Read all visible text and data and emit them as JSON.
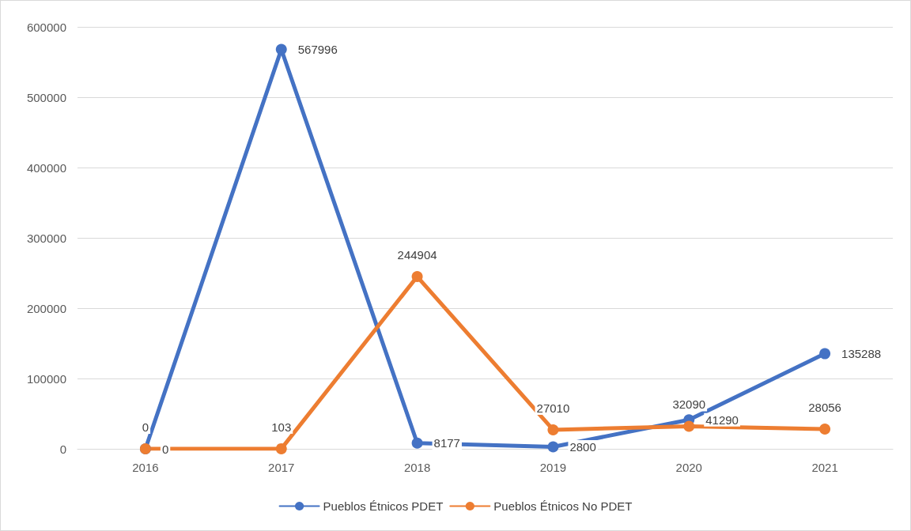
{
  "chart_data": {
    "type": "line",
    "categories": [
      "2016",
      "2017",
      "2018",
      "2019",
      "2020",
      "2021"
    ],
    "series": [
      {
        "name": "Pueblos Étnicos PDET",
        "color": "#4472c4",
        "values": [
          0,
          567996,
          8177,
          2800,
          41290,
          135288
        ]
      },
      {
        "name": "Pueblos Étnicos No PDET",
        "color": "#ed7d31",
        "values": [
          0,
          103,
          244904,
          27010,
          32090,
          28056
        ]
      }
    ],
    "ylim": [
      0,
      600000
    ],
    "yticks": [
      0,
      100000,
      200000,
      300000,
      400000,
      500000,
      600000
    ],
    "grid": "y",
    "legend": "bottom",
    "marker": "circle",
    "line_style": "solid",
    "data_labels": true
  }
}
